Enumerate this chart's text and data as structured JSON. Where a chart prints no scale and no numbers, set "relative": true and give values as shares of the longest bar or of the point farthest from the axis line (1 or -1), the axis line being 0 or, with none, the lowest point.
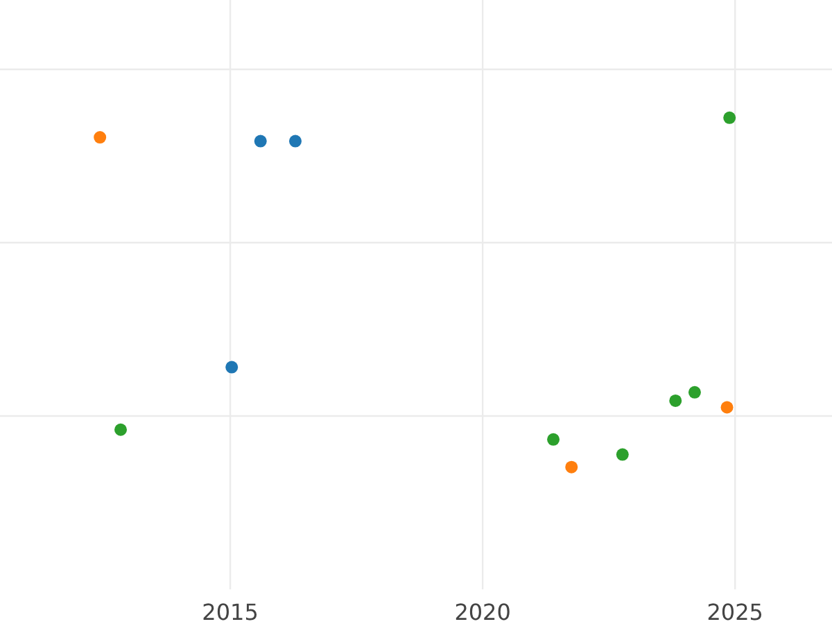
{
  "chart_data": {
    "type": "scatter",
    "relative": true,
    "xlim": [
      2010.44,
      2026.92
    ],
    "xticks": [
      2015,
      2020,
      2025
    ],
    "tick_labels": "x",
    "grid": true,
    "marker": "circle",
    "series": [
      {
        "color": "#1f77b4",
        "x": [
          2015.6,
          2016.29,
          2015.03
        ],
        "values": [
          0.933,
          0.933,
          0.286
        ]
      },
      {
        "color": "#ff7f0e",
        "x": [
          2012.42,
          2021.76,
          2024.84
        ],
        "values": [
          0.944,
          0,
          0.171
        ]
      },
      {
        "color": "#2ca02c",
        "x": [
          2024.89,
          2012.83,
          2021.4,
          2022.77,
          2023.82,
          2024.2
        ],
        "values": [
          1,
          0.107,
          0.079,
          0.036,
          0.19,
          0.214
        ]
      }
    ]
  }
}
